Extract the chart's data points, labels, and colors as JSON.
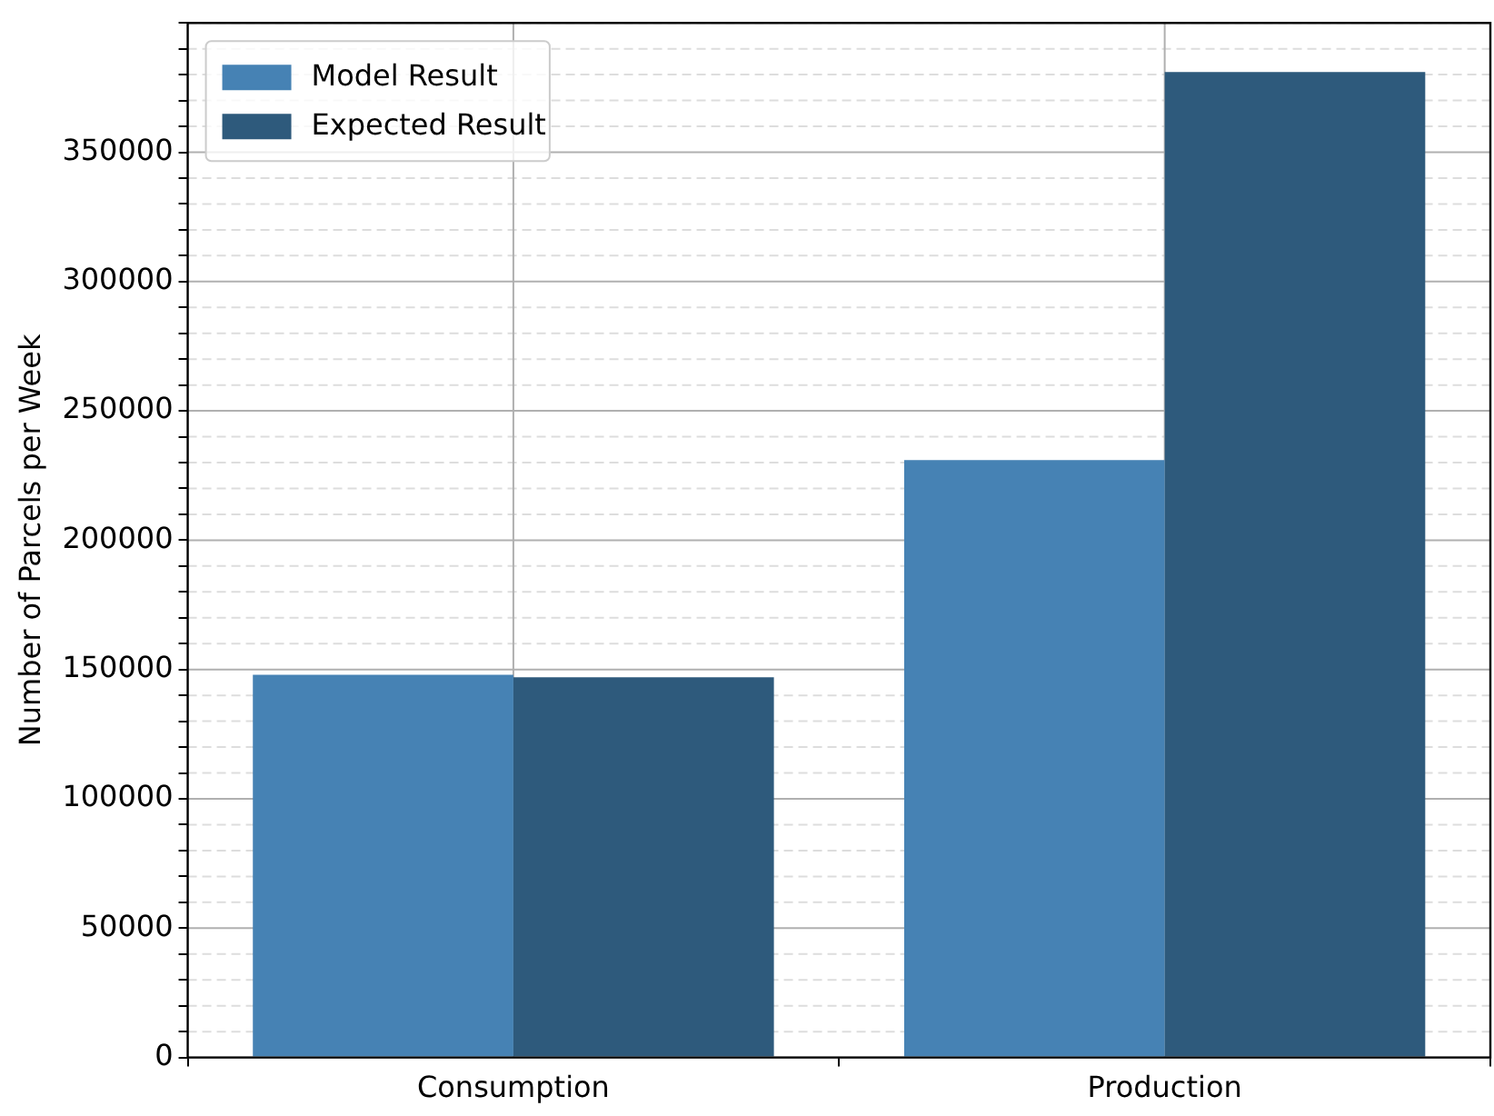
{
  "chart_data": {
    "type": "bar",
    "ylabel": "Number of Parcels per Week",
    "categories": [
      "Consumption",
      "Production"
    ],
    "series": [
      {
        "name": "Model Result",
        "color": "#4682b4",
        "values": [
          148000,
          231000
        ]
      },
      {
        "name": "Expected Result",
        "color": "#2e5a7c",
        "values": [
          147000,
          381000
        ]
      }
    ],
    "ylim": [
      0,
      400000
    ],
    "yticks": [
      0,
      {
        "value": 10000,
        "label": null
      },
      {
        "value": 20000,
        "label": null
      },
      {
        "value": 30000,
        "label": null
      },
      {
        "value": 40000,
        "label": null
      },
      50000,
      {
        "value": 60000,
        "label": null
      },
      {
        "value": 70000,
        "label": null
      },
      {
        "value": 80000,
        "label": null
      },
      {
        "value": 90000,
        "label": null
      },
      100000,
      {
        "value": 110000,
        "label": null
      },
      {
        "value": 120000,
        "label": null
      },
      {
        "value": 130000,
        "label": null
      },
      {
        "value": 140000,
        "label": null
      },
      150000,
      {
        "value": 160000,
        "label": null
      },
      {
        "value": 170000,
        "label": null
      },
      {
        "value": 180000,
        "label": null
      },
      {
        "value": 190000,
        "label": null
      },
      200000,
      {
        "value": 210000,
        "label": null
      },
      {
        "value": 220000,
        "label": null
      },
      {
        "value": 230000,
        "label": null
      },
      {
        "value": 240000,
        "label": null
      },
      250000,
      {
        "value": 260000,
        "label": null
      },
      {
        "value": 270000,
        "label": null
      },
      {
        "value": 280000,
        "label": null
      },
      {
        "value": 290000,
        "label": null
      },
      300000,
      {
        "value": 310000,
        "label": null
      },
      {
        "value": 320000,
        "label": null
      },
      {
        "value": 330000,
        "label": null
      },
      {
        "value": 340000,
        "label": null
      },
      350000,
      {
        "value": 360000,
        "label": null
      },
      {
        "value": 370000,
        "label": null
      },
      {
        "value": 380000,
        "label": null
      },
      {
        "value": 390000,
        "label": null
      },
      {
        "value": 400000,
        "label": null
      }
    ],
    "grid": true,
    "legend": "top left"
  }
}
